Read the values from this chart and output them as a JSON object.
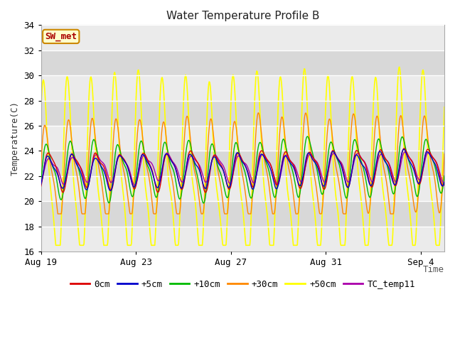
{
  "title": "Water Temperature Profile B",
  "xlabel": "Time",
  "ylabel": "Temperature(C)",
  "ylim": [
    16,
    34
  ],
  "yticks": [
    16,
    18,
    20,
    22,
    24,
    26,
    28,
    30,
    32,
    34
  ],
  "series": [
    "0cm",
    "+5cm",
    "+10cm",
    "+30cm",
    "+50cm",
    "TC_temp11"
  ],
  "colors": [
    "#dd0000",
    "#0000cc",
    "#00bb00",
    "#ff8800",
    "#ffff00",
    "#aa00aa"
  ],
  "linewidths": [
    1.0,
    1.0,
    1.0,
    1.0,
    1.2,
    1.0
  ],
  "annotation_text": "SW_met",
  "annotation_color": "#aa0000",
  "annotation_bg": "#ffffcc",
  "annotation_border": "#cc8800",
  "plot_bg_light": "#ebebeb",
  "plot_bg_dark": "#d8d8d8",
  "grid_color": "#ffffff",
  "x_tick_dates": [
    "Aug 19",
    "Aug 23",
    "Aug 27",
    "Aug 31",
    "Sep 4"
  ],
  "n_days": 17,
  "figsize": [
    6.4,
    4.8
  ],
  "dpi": 100
}
